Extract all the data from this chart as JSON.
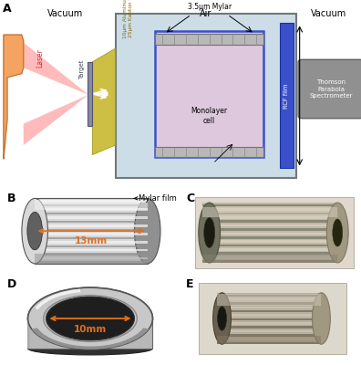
{
  "figure_bg": "#ffffff",
  "panel_A": {
    "label": "A",
    "vacuum_left": "Vacuum",
    "air": "Air",
    "vacuum_right": "Vacuum",
    "laser": "Laser",
    "parabola": "Parabola",
    "target": "Target",
    "kapton": "10μm Aluminum &\n25μm Kapton film",
    "mylar": "3.5μm Mylar",
    "rcf": "RCF film",
    "monolayer": "Monolayer\ncell",
    "spectrometer": "Thomson\nParabola\nSpectrometer",
    "air_bg": "#ccdde8",
    "box_edge": "#707878",
    "rcf_color": "#3a50c8",
    "mono_fill": "#ddc8dd",
    "spec_fill": "#909090",
    "parabola_fill": "#f4a460",
    "laser_fill": "#ffb8b8",
    "kapton_fill": "#c8b830",
    "target_fill": "#8888aa"
  },
  "panel_B": {
    "label": "B",
    "mylar_label": "Mylar film",
    "dim_label": "13mm",
    "dim_color": "#e07020",
    "body_light": "#f0f0f0",
    "body_mid": "#c8c8c8",
    "body_dark": "#888888",
    "hole_color": "#585858"
  },
  "panel_C": {
    "label": "C",
    "body_color": "#b8b0a0",
    "thread_dark": "#707060",
    "thread_light": "#d8d0c0"
  },
  "panel_D": {
    "label": "D",
    "dim_label": "10mm",
    "dim_color": "#e07020",
    "outer_color": "#c8c8c8",
    "inner_color": "#303030",
    "ring_light": "#e8e8e8",
    "ring_dark": "#606060"
  },
  "panel_E": {
    "label": "E",
    "body_color": "#b0a898",
    "thread_dark": "#707060",
    "thread_light": "#d0c8b8"
  }
}
